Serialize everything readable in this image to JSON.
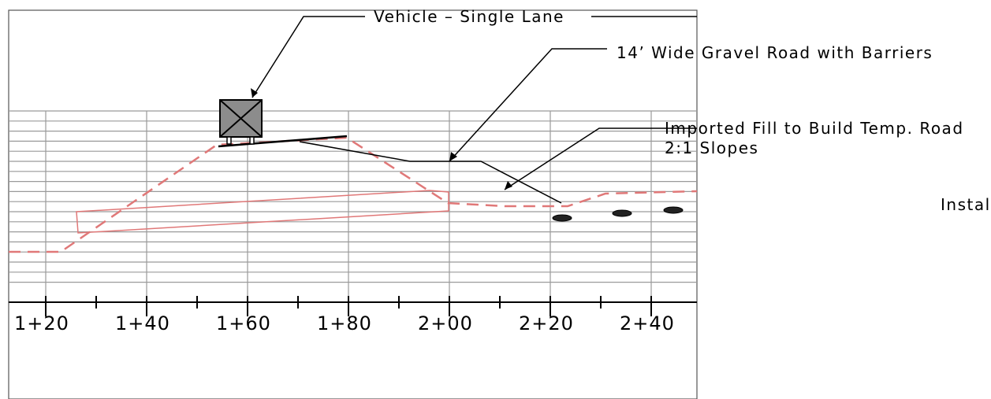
{
  "annotations": {
    "vehicle": "Vehicle – Single Lane",
    "road": "14’ Wide Gravel Road with Barriers",
    "fill": "Imported Fill to Build Temp. Road",
    "slopes": "2:1 Slopes",
    "install": "Install"
  },
  "stations": [
    "1+20",
    "1+40",
    "1+60",
    "1+80",
    "2+00",
    "2+20",
    "2+40"
  ],
  "colors": {
    "grid": "#9a9a9a",
    "fill_outline": "#e07878",
    "vehicle": "#8c8c8c",
    "ink": "#000000"
  }
}
